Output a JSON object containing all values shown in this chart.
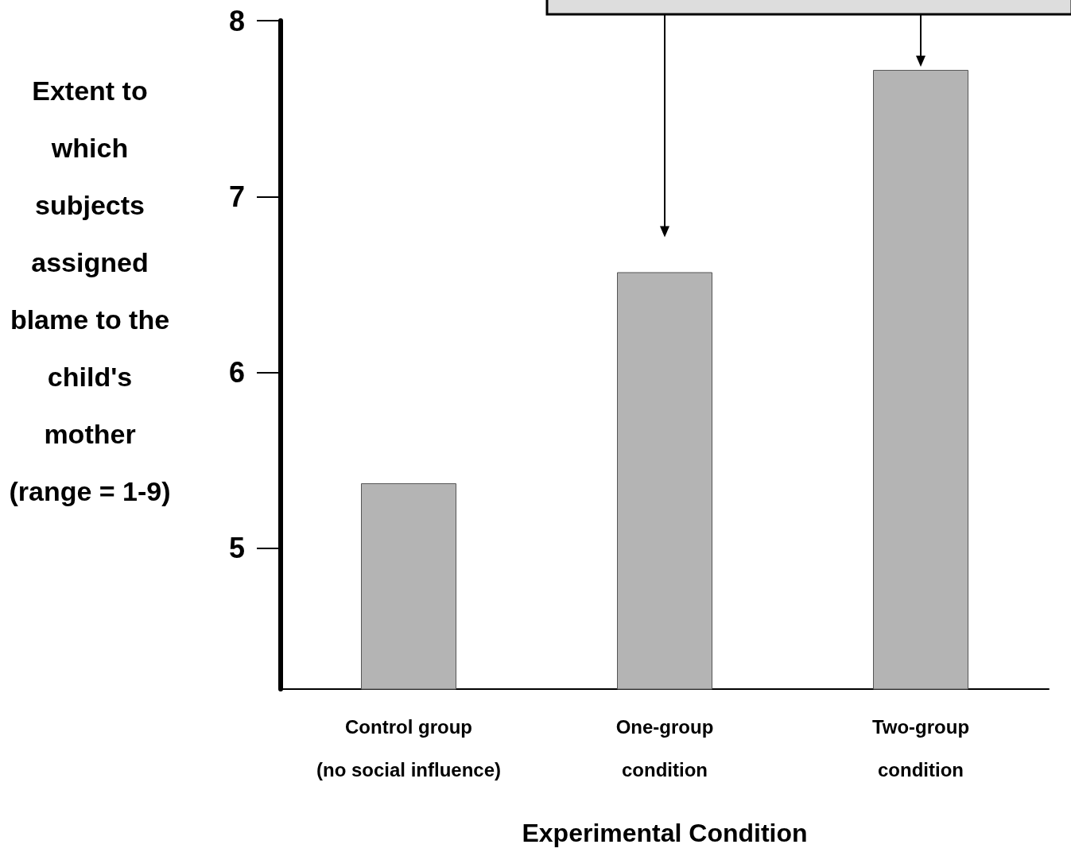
{
  "chart_data": {
    "type": "bar",
    "xlabel": "Experimental Condition",
    "ylabel": "Extent to which subjects assigned blame to the child's mother (range = 1-9)",
    "categories": [
      "Control group\n(no social influence)",
      "One-group\ncondition",
      "Two-group\ncondition"
    ],
    "values": [
      5.37,
      6.57,
      7.72
    ],
    "color": "#b4b4b4",
    "ylim": [
      4.2,
      8
    ],
    "yticks": [
      5,
      6,
      7,
      8
    ],
    "grid": false
  }
}
